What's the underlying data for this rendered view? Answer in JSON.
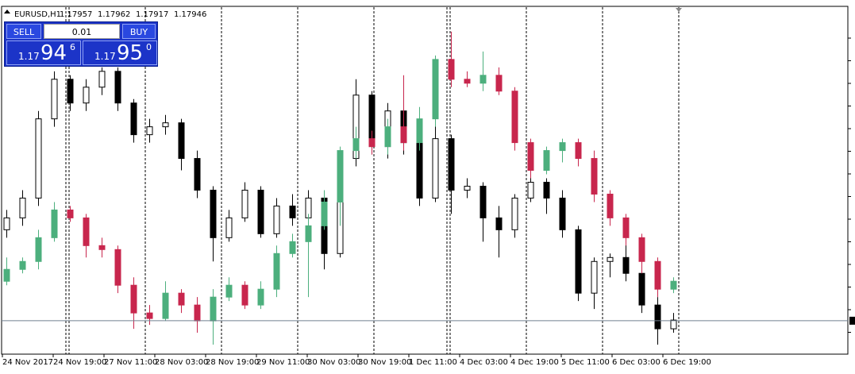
{
  "header": {
    "symbol": "EURUSD,H1",
    "ohlc": [
      1.17957,
      1.17962,
      1.17917,
      1.17946
    ]
  },
  "trade_panel": {
    "sell": "SELL",
    "buy": "BUY",
    "lot": "0.01",
    "bid": {
      "big": "1.17",
      "main": "94",
      "pip": "6"
    },
    "ask": {
      "big": "1.17",
      "main": "95",
      "pip": "0"
    }
  },
  "chart_data": {
    "type": "candlestick",
    "x_labels": [
      "24 Nov 2017",
      "24 Nov 19:00",
      "27 Nov 11:00",
      "28 Nov 03:00",
      "28 Nov 19:00",
      "29 Nov 11:00",
      "30 Nov 03:00",
      "30 Nov 19:00",
      "1 Dec 11:00",
      "4 Dec 03:00",
      "4 Dec 19:00",
      "5 Dec 11:00",
      "6 Dec 03:00",
      "6 Dec 19:00"
    ],
    "ylim": [
      1.1774,
      1.1992
    ],
    "series": [
      {
        "color": "#000000",
        "up_color": "#ffffff",
        "values": [
          [
            1.1852,
            1.18645,
            1.1847,
            1.18595
          ],
          [
            1.18595,
            1.1877,
            1.18545,
            1.1872
          ],
          [
            1.1872,
            1.1927,
            1.1867,
            1.1922
          ],
          [
            1.1922,
            1.1952,
            1.1917,
            1.1947
          ],
          [
            1.1947,
            1.19495,
            1.1927,
            1.1932
          ],
          [
            1.1932,
            1.1947,
            1.1927,
            1.1942
          ],
          [
            1.1942,
            1.19545,
            1.1937,
            1.1952
          ],
          [
            1.1952,
            1.19545,
            1.1927,
            1.1932
          ],
          [
            1.1932,
            1.19345,
            1.1907,
            1.1912
          ],
          [
            1.1912,
            1.1922,
            1.1907,
            1.1917
          ],
          [
            1.1917,
            1.19245,
            1.1912,
            1.19195
          ],
          [
            1.19195,
            1.1922,
            1.18895,
            1.1897
          ],
          [
            1.1897,
            1.1902,
            1.1872,
            1.1877
          ],
          [
            1.1877,
            1.18795,
            1.1832,
            1.1847
          ],
          [
            1.1847,
            1.18645,
            1.18445,
            1.18595
          ],
          [
            1.18595,
            1.1882,
            1.1857,
            1.1877
          ],
          [
            1.1877,
            1.18795,
            1.1847,
            1.18495
          ],
          [
            1.18495,
            1.1872,
            1.1847,
            1.1867
          ],
          [
            1.1867,
            1.18745,
            1.18545,
            1.18595
          ],
          [
            1.18595,
            1.1877,
            1.1852,
            1.1872
          ],
          [
            1.1872,
            1.1877,
            1.1827,
            1.1837
          ],
          [
            1.1837,
            1.1902,
            1.18345,
            1.1897
          ],
          [
            1.1897,
            1.1947,
            1.1892,
            1.1937
          ],
          [
            1.1937,
            1.19395,
            1.18995,
            1.19045
          ],
          [
            1.19045,
            1.1932,
            1.1897,
            1.1927
          ],
          [
            1.1927,
            1.19445,
            1.18995,
            1.1907
          ],
          [
            1.1907,
            1.1912,
            1.1867,
            1.1872
          ],
          [
            1.1872,
            1.1922,
            1.18695,
            1.19095
          ],
          [
            1.19095,
            1.1912,
            1.1862,
            1.1877
          ],
          [
            1.1877,
            1.18845,
            1.1872,
            1.18795
          ],
          [
            1.18795,
            1.1882,
            1.18445,
            1.18595
          ],
          [
            1.18595,
            1.1867,
            1.18345,
            1.1852
          ],
          [
            1.1852,
            1.18745,
            1.1847,
            1.1872
          ],
          [
            1.1872,
            1.1887,
            1.18695,
            1.1882
          ],
          [
            1.1882,
            1.18845,
            1.1862,
            1.1872
          ],
          [
            1.1872,
            1.1877,
            1.1847,
            1.1852
          ],
          [
            1.1852,
            1.18545,
            1.1807,
            1.1812
          ],
          [
            1.1812,
            1.18345,
            1.1802,
            1.1832
          ],
          [
            1.1832,
            1.1837,
            1.1822,
            1.18345
          ],
          [
            1.18345,
            1.1847,
            1.18195,
            1.18245
          ],
          [
            1.18245,
            1.1832,
            1.17995,
            1.18045
          ],
          [
            1.18045,
            1.18095,
            1.17795,
            1.17895
          ],
          [
            1.17895,
            1.17995,
            1.1787,
            1.1795
          ]
        ]
      },
      {
        "color": "#c8264d",
        "up_color": "#4caf7d",
        "values": [
          [
            1.18195,
            1.18345,
            1.1817,
            1.1827
          ],
          [
            1.1827,
            1.18345,
            1.18245,
            1.1832
          ],
          [
            1.1832,
            1.1852,
            1.1827,
            1.1847
          ],
          [
            1.1847,
            1.18695,
            1.18445,
            1.18645
          ],
          [
            1.18645,
            1.1867,
            1.1857,
            1.18595
          ],
          [
            1.18595,
            1.1862,
            1.18345,
            1.1842
          ],
          [
            1.1842,
            1.1847,
            1.18345,
            1.18395
          ],
          [
            1.18395,
            1.1842,
            1.1812,
            1.1817
          ],
          [
            1.1817,
            1.1822,
            1.17895,
            1.17995
          ],
          [
            1.17995,
            1.18045,
            1.1792,
            1.1796
          ],
          [
            1.1796,
            1.18195,
            1.17945,
            1.1812
          ],
          [
            1.1812,
            1.18145,
            1.17995,
            1.18045
          ],
          [
            1.18045,
            1.18095,
            1.1787,
            1.17945
          ],
          [
            1.17945,
            1.18145,
            1.17795,
            1.18095
          ],
          [
            1.18095,
            1.1822,
            1.1807,
            1.1817
          ],
          [
            1.1817,
            1.18195,
            1.1802,
            1.18045
          ],
          [
            1.18045,
            1.18195,
            1.1802,
            1.18145
          ],
          [
            1.18145,
            1.1842,
            1.18095,
            1.1837
          ],
          [
            1.1837,
            1.18495,
            1.18345,
            1.18445
          ],
          [
            1.18445,
            1.1862,
            1.18095,
            1.18545
          ],
          [
            1.18545,
            1.1877,
            1.1852,
            1.18695
          ],
          [
            1.18695,
            1.19045,
            1.18545,
            1.1902
          ],
          [
            1.1902,
            1.1917,
            1.1897,
            1.19095
          ],
          [
            1.19095,
            1.19145,
            1.18995,
            1.19045
          ],
          [
            1.19045,
            1.1922,
            1.18995,
            1.1917
          ],
          [
            1.1917,
            1.19495,
            1.1902,
            1.1907
          ],
          [
            1.1907,
            1.19295,
            1.1902,
            1.1922
          ],
          [
            1.1922,
            1.1962,
            1.1917,
            1.19595
          ],
          [
            1.19595,
            1.1977,
            1.1942,
            1.1947
          ],
          [
            1.1947,
            1.1952,
            1.1942,
            1.19445
          ],
          [
            1.19445,
            1.19645,
            1.19395,
            1.19495
          ],
          [
            1.19495,
            1.19545,
            1.1937,
            1.19395
          ],
          [
            1.19395,
            1.1942,
            1.1902,
            1.1907
          ],
          [
            1.1907,
            1.19095,
            1.18845,
            1.18895
          ],
          [
            1.18895,
            1.19045,
            1.1887,
            1.1902
          ],
          [
            1.1902,
            1.19095,
            1.18945,
            1.1907
          ],
          [
            1.1907,
            1.19095,
            1.1892,
            1.1897
          ],
          [
            1.1897,
            1.1902,
            1.18695,
            1.18745
          ],
          [
            1.18745,
            1.1877,
            1.18545,
            1.18595
          ],
          [
            1.18595,
            1.1862,
            1.1842,
            1.1847
          ],
          [
            1.1847,
            1.18495,
            1.18245,
            1.1832
          ],
          [
            1.1832,
            1.18345,
            1.18095,
            1.18145
          ],
          [
            1.18145,
            1.1822,
            1.1812,
            1.18195
          ]
        ]
      }
    ]
  }
}
